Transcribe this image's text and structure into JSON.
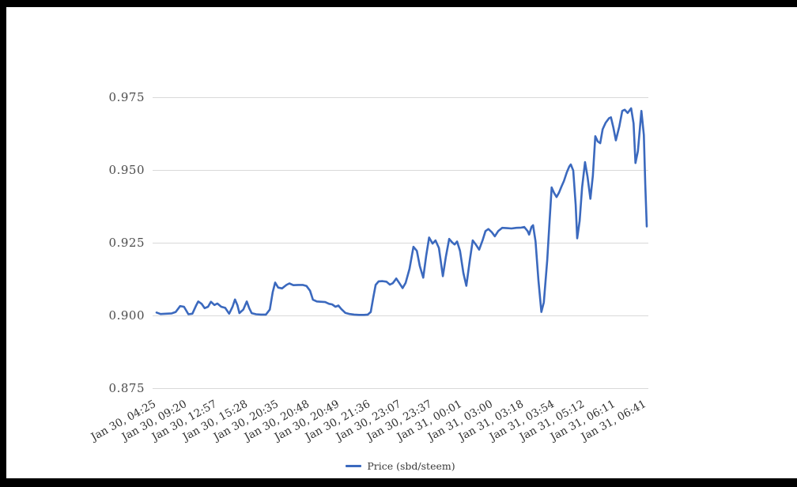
{
  "page": {
    "background_color": "#ffffff",
    "frame_color": "#000000"
  },
  "colors": {
    "line": "#3b69be",
    "grid": "#d9d9d9",
    "y_axis_text": "#4c4c4c",
    "x_axis_text": "#2f2f2f",
    "legend_text": "#3a3a3a"
  },
  "legend": {
    "label": "Price (sbd/steem)"
  },
  "chart_data": {
    "type": "line",
    "title": "",
    "xlabel": "",
    "ylabel": "",
    "grid": true,
    "legend_position": "bottom",
    "ylim": [
      0.875,
      0.975
    ],
    "y_ticks": [
      {
        "label": "0.975",
        "value": 0.975
      },
      {
        "label": "0.950",
        "value": 0.95
      },
      {
        "label": "0.925",
        "value": 0.925
      },
      {
        "label": "0.900",
        "value": 0.9
      },
      {
        "label": "0.875",
        "value": 0.875
      }
    ],
    "x_ticks": [
      "Jan 30, 04:25",
      "Jan 30, 09:20",
      "Jan 30, 12:57",
      "Jan 30, 15:28",
      "Jan 30, 20:35",
      "Jan 30, 20:48",
      "Jan 30, 20:49",
      "Jan 30, 21:36",
      "Jan 30, 23:07",
      "Jan 30, 23:37",
      "Jan 31, 00:01",
      "Jan 31, 03:00",
      "Jan 31, 03:18",
      "Jan 31, 03:54",
      "Jan 31, 05:12",
      "Jan 31, 06:11",
      "Jan 31, 06:41"
    ],
    "series": [
      {
        "name": "Price (sbd/steem)",
        "color": "#3b69be",
        "points": [
          [
            0.0,
            0.901
          ],
          [
            0.008,
            0.9005
          ],
          [
            0.019,
            0.9006
          ],
          [
            0.031,
            0.9007
          ],
          [
            0.039,
            0.9012
          ],
          [
            0.048,
            0.9032
          ],
          [
            0.056,
            0.903
          ],
          [
            0.065,
            0.9004
          ],
          [
            0.073,
            0.9006
          ],
          [
            0.081,
            0.9035
          ],
          [
            0.085,
            0.9048
          ],
          [
            0.092,
            0.904
          ],
          [
            0.098,
            0.9025
          ],
          [
            0.105,
            0.903
          ],
          [
            0.111,
            0.9047
          ],
          [
            0.118,
            0.9036
          ],
          [
            0.124,
            0.9041
          ],
          [
            0.132,
            0.903
          ],
          [
            0.14,
            0.9026
          ],
          [
            0.148,
            0.9006
          ],
          [
            0.155,
            0.903
          ],
          [
            0.16,
            0.9055
          ],
          [
            0.165,
            0.9035
          ],
          [
            0.169,
            0.9008
          ],
          [
            0.177,
            0.902
          ],
          [
            0.184,
            0.9048
          ],
          [
            0.189,
            0.9025
          ],
          [
            0.194,
            0.9008
          ],
          [
            0.203,
            0.9004
          ],
          [
            0.213,
            0.9003
          ],
          [
            0.223,
            0.9003
          ],
          [
            0.231,
            0.902
          ],
          [
            0.237,
            0.908
          ],
          [
            0.242,
            0.9113
          ],
          [
            0.248,
            0.9096
          ],
          [
            0.256,
            0.9093
          ],
          [
            0.265,
            0.9105
          ],
          [
            0.271,
            0.911
          ],
          [
            0.279,
            0.9104
          ],
          [
            0.289,
            0.9105
          ],
          [
            0.298,
            0.9105
          ],
          [
            0.306,
            0.9101
          ],
          [
            0.313,
            0.9085
          ],
          [
            0.319,
            0.9054
          ],
          [
            0.327,
            0.9048
          ],
          [
            0.335,
            0.9047
          ],
          [
            0.344,
            0.9046
          ],
          [
            0.352,
            0.904
          ],
          [
            0.358,
            0.9038
          ],
          [
            0.365,
            0.903
          ],
          [
            0.371,
            0.9034
          ],
          [
            0.377,
            0.9022
          ],
          [
            0.385,
            0.9009
          ],
          [
            0.394,
            0.9005
          ],
          [
            0.403,
            0.9003
          ],
          [
            0.413,
            0.9002
          ],
          [
            0.423,
            0.9002
          ],
          [
            0.431,
            0.9003
          ],
          [
            0.437,
            0.9012
          ],
          [
            0.442,
            0.906
          ],
          [
            0.447,
            0.9105
          ],
          [
            0.453,
            0.9117
          ],
          [
            0.461,
            0.9118
          ],
          [
            0.469,
            0.9116
          ],
          [
            0.476,
            0.9106
          ],
          [
            0.482,
            0.9111
          ],
          [
            0.489,
            0.9127
          ],
          [
            0.495,
            0.9112
          ],
          [
            0.502,
            0.9094
          ],
          [
            0.508,
            0.9112
          ],
          [
            0.516,
            0.916
          ],
          [
            0.524,
            0.9236
          ],
          [
            0.531,
            0.9222
          ],
          [
            0.537,
            0.917
          ],
          [
            0.544,
            0.913
          ],
          [
            0.55,
            0.9205
          ],
          [
            0.556,
            0.9268
          ],
          [
            0.563,
            0.9247
          ],
          [
            0.569,
            0.9258
          ],
          [
            0.576,
            0.9232
          ],
          [
            0.584,
            0.9135
          ],
          [
            0.59,
            0.92
          ],
          [
            0.597,
            0.9263
          ],
          [
            0.603,
            0.9251
          ],
          [
            0.608,
            0.9244
          ],
          [
            0.613,
            0.9254
          ],
          [
            0.619,
            0.9222
          ],
          [
            0.626,
            0.9145
          ],
          [
            0.632,
            0.9102
          ],
          [
            0.639,
            0.919
          ],
          [
            0.645,
            0.9258
          ],
          [
            0.652,
            0.9242
          ],
          [
            0.658,
            0.9226
          ],
          [
            0.665,
            0.9258
          ],
          [
            0.671,
            0.929
          ],
          [
            0.677,
            0.9297
          ],
          [
            0.684,
            0.9286
          ],
          [
            0.69,
            0.9272
          ],
          [
            0.697,
            0.929
          ],
          [
            0.705,
            0.9301
          ],
          [
            0.715,
            0.93
          ],
          [
            0.724,
            0.9299
          ],
          [
            0.734,
            0.9301
          ],
          [
            0.744,
            0.9302
          ],
          [
            0.75,
            0.9304
          ],
          [
            0.757,
            0.929
          ],
          [
            0.76,
            0.9278
          ],
          [
            0.765,
            0.9305
          ],
          [
            0.768,
            0.931
          ],
          [
            0.773,
            0.9255
          ],
          [
            0.779,
            0.912
          ],
          [
            0.785,
            0.9012
          ],
          [
            0.79,
            0.9045
          ],
          [
            0.797,
            0.919
          ],
          [
            0.802,
            0.933
          ],
          [
            0.806,
            0.944
          ],
          [
            0.811,
            0.9421
          ],
          [
            0.816,
            0.9407
          ],
          [
            0.821,
            0.9422
          ],
          [
            0.826,
            0.9443
          ],
          [
            0.831,
            0.9462
          ],
          [
            0.837,
            0.9492
          ],
          [
            0.842,
            0.9512
          ],
          [
            0.845,
            0.9519
          ],
          [
            0.85,
            0.9498
          ],
          [
            0.855,
            0.938
          ],
          [
            0.858,
            0.9265
          ],
          [
            0.863,
            0.9325
          ],
          [
            0.868,
            0.944
          ],
          [
            0.874,
            0.9527
          ],
          [
            0.879,
            0.9478
          ],
          [
            0.885,
            0.9401
          ],
          [
            0.89,
            0.948
          ],
          [
            0.895,
            0.9616
          ],
          [
            0.9,
            0.9598
          ],
          [
            0.905,
            0.9592
          ],
          [
            0.91,
            0.964
          ],
          [
            0.916,
            0.9662
          ],
          [
            0.923,
            0.9678
          ],
          [
            0.927,
            0.9681
          ],
          [
            0.932,
            0.9645
          ],
          [
            0.937,
            0.9602
          ],
          [
            0.944,
            0.965
          ],
          [
            0.95,
            0.9703
          ],
          [
            0.955,
            0.9707
          ],
          [
            0.961,
            0.9696
          ],
          [
            0.968,
            0.9712
          ],
          [
            0.973,
            0.966
          ],
          [
            0.977,
            0.9524
          ],
          [
            0.982,
            0.9565
          ],
          [
            0.989,
            0.9703
          ],
          [
            0.994,
            0.962
          ],
          [
            0.997,
            0.945
          ],
          [
            1.0,
            0.9306
          ]
        ]
      }
    ]
  }
}
